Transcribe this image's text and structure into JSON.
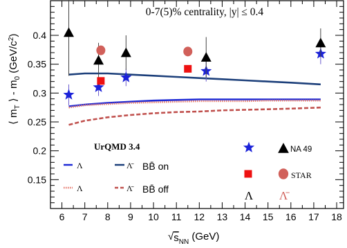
{
  "chart_data": {
    "type": "scatter",
    "annotation": "0-7(5)% centrality, |y| ≤ 0.4",
    "xlabel": "√s_NN (GeV)",
    "ylabel": "⟨ m_T ⟩ - m_0 (GeV/c²)",
    "xlim": [
      5.5,
      18.3
    ],
    "ylim": [
      0.1,
      0.46
    ],
    "xticks": [
      6,
      7,
      8,
      9,
      10,
      11,
      12,
      13,
      14,
      15,
      16,
      17,
      18
    ],
    "yticks": [
      0.15,
      0.2,
      0.25,
      0.3,
      0.35,
      0.4
    ],
    "grid": false,
    "legend_title": "UrQMD 3.4",
    "curves": [
      {
        "label": "Λ",
        "group": "BB̄ on",
        "color": "#1f2bd6",
        "dash": "solid",
        "x": [
          6.3,
          7,
          8,
          9,
          10,
          11,
          12,
          13,
          14,
          15,
          16,
          17.3
        ],
        "y": [
          0.277,
          0.28,
          0.283,
          0.285,
          0.287,
          0.288,
          0.289,
          0.289,
          0.289,
          0.289,
          0.289,
          0.289
        ]
      },
      {
        "label": "Λ̄",
        "group": "BB̄ on",
        "color": "#1c3f7a",
        "dash": "solid",
        "x": [
          6.3,
          7,
          8,
          9,
          10,
          11,
          12,
          13,
          14,
          15,
          16,
          17.3
        ],
        "y": [
          0.332,
          0.334,
          0.334,
          0.332,
          0.33,
          0.328,
          0.326,
          0.324,
          0.322,
          0.32,
          0.318,
          0.315
        ]
      },
      {
        "label": "Λ",
        "group": "BB̄ off",
        "color": "#e4766a",
        "dash": "dotted",
        "x": [
          6.3,
          7,
          8,
          9,
          10,
          11,
          12,
          13,
          14,
          15,
          16,
          17.3
        ],
        "y": [
          0.275,
          0.279,
          0.281,
          0.283,
          0.284,
          0.285,
          0.286,
          0.286,
          0.286,
          0.287,
          0.287,
          0.287
        ]
      },
      {
        "label": "Λ̄",
        "group": "BB̄ off",
        "color": "#c0504d",
        "dash": "dashed",
        "x": [
          6.3,
          7,
          8,
          9,
          10,
          11,
          12,
          13,
          14,
          15,
          16,
          17.3
        ],
        "y": [
          0.245,
          0.252,
          0.258,
          0.262,
          0.265,
          0.267,
          0.268,
          0.27,
          0.271,
          0.272,
          0.273,
          0.275
        ]
      }
    ],
    "points": [
      {
        "experiment": "NA 49",
        "particle": "Λ",
        "marker": "star",
        "color": "#1b22d9",
        "x": [
          6.3,
          7.6,
          8.8,
          12.3,
          17.3
        ],
        "y": [
          0.297,
          0.31,
          0.327,
          0.338,
          0.368
        ],
        "yerr": [
          0.018,
          0.015,
          0.015,
          0.018,
          0.018
        ]
      },
      {
        "experiment": "NA 49",
        "particle": "Λ̄",
        "marker": "triangle",
        "color": "#000000",
        "x": [
          6.3,
          7.6,
          8.8,
          12.3,
          17.3
        ],
        "y": [
          0.405,
          0.357,
          0.37,
          0.362,
          0.387
        ],
        "yerr": [
          0.075,
          0.03,
          0.03,
          0.035,
          0.025
        ]
      },
      {
        "experiment": "STAR",
        "particle": "Λ",
        "marker": "square",
        "color": "#ee1111",
        "x": [
          7.7,
          11.5
        ],
        "y": [
          0.321,
          0.342
        ],
        "yerr": [
          0,
          0
        ]
      },
      {
        "experiment": "STAR",
        "particle": "Λ̄",
        "marker": "circle",
        "color": "#d1605a",
        "x": [
          7.7,
          11.5
        ],
        "y": [
          0.374,
          0.372
        ],
        "yerr": [
          0,
          0
        ]
      }
    ],
    "legend": {
      "curve_entries": [
        {
          "label": "Λ"
        },
        {
          "label": "Λ̄",
          "group": "BB̄ on"
        },
        {
          "label": "Λ"
        },
        {
          "label": "Λ̄",
          "group": "BB̄ off"
        }
      ],
      "exp_labels": [
        "NA 49",
        "STAR"
      ],
      "particle_labels": [
        "Λ",
        "Λ̄"
      ]
    }
  }
}
